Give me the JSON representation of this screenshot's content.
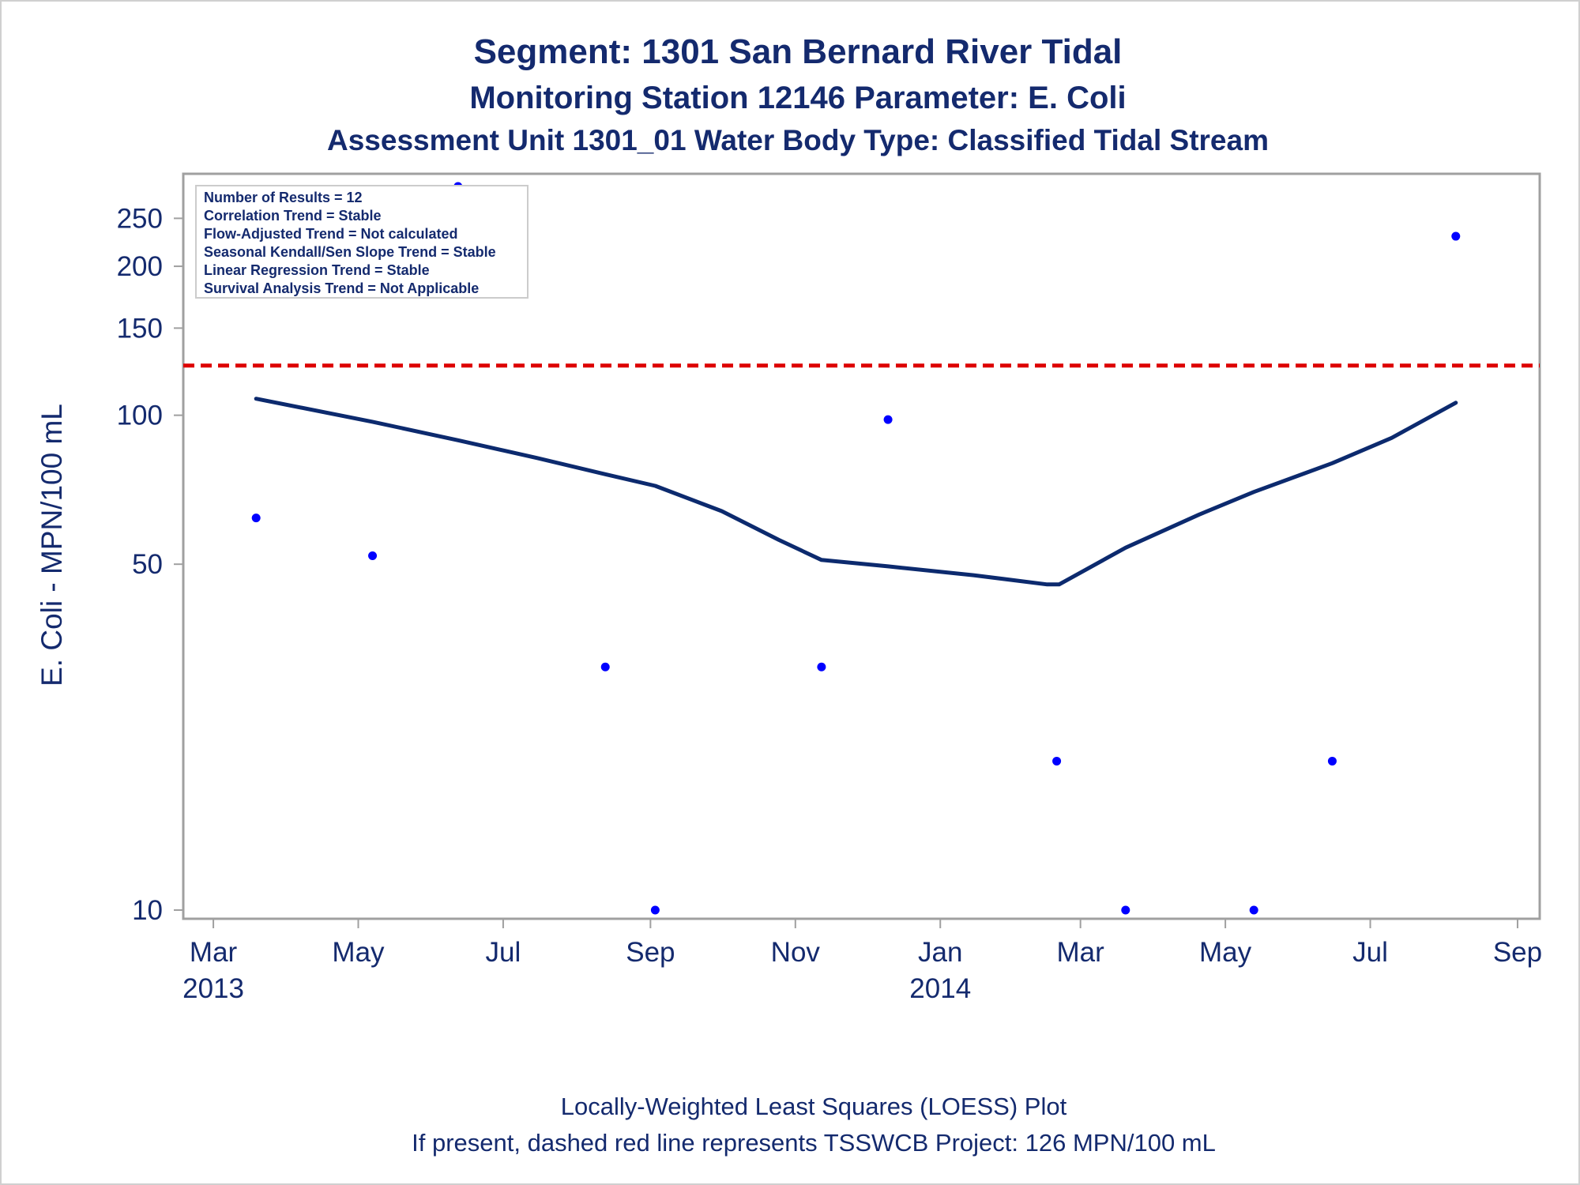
{
  "titles": [
    "Segment: 1301  San Bernard River Tidal",
    "Monitoring Station 12146 Parameter: E. Coli",
    "Assessment Unit 1301_01   Water Body Type: Classified Tidal Stream"
  ],
  "stats_box": [
    "Number of Results = 12",
    "Correlation Trend = Stable",
    "Flow-Adjusted Trend = Not calculated",
    "Seasonal Kendall/Sen Slope Trend = Stable",
    "Linear Regression Trend = Stable",
    "Survival Analysis Trend = Not Applicable"
  ],
  "footnotes": [
    "Locally-Weighted Least Squares (LOESS) Plot",
    "If present, dashed red line represents TSSWCB Project: 126 MPN/100 mL"
  ],
  "colors": {
    "text": "#142a6e",
    "points": "#0000ff",
    "loess": "#0c2a6e",
    "criterion": "#dd0000",
    "frame": "#a0a0a0"
  },
  "chart_data": {
    "type": "scatter",
    "ylabel": "E. Coli - MPN/100 mL",
    "xlabel": "",
    "y_scale": "log",
    "ylim": [
      10,
      290
    ],
    "xlim": [
      "2013-02-20",
      "2014-09-05"
    ],
    "y_ticks": [
      10,
      50,
      100,
      150,
      200,
      250
    ],
    "x_ticks": [
      {
        "date": "2013-03-01",
        "label": "Mar",
        "year": "2013"
      },
      {
        "date": "2013-05-01",
        "label": "May",
        "year": ""
      },
      {
        "date": "2013-07-01",
        "label": "Jul",
        "year": ""
      },
      {
        "date": "2013-09-01",
        "label": "Sep",
        "year": ""
      },
      {
        "date": "2013-11-01",
        "label": "Nov",
        "year": ""
      },
      {
        "date": "2014-01-01",
        "label": "Jan",
        "year": "2014"
      },
      {
        "date": "2014-03-01",
        "label": "Mar",
        "year": ""
      },
      {
        "date": "2014-05-01",
        "label": "May",
        "year": ""
      },
      {
        "date": "2014-07-01",
        "label": "Jul",
        "year": ""
      },
      {
        "date": "2014-09-01",
        "label": "Sep",
        "year": ""
      }
    ],
    "points": [
      {
        "x": "2013-03-19",
        "y": 62
      },
      {
        "x": "2013-05-07",
        "y": 52
      },
      {
        "x": "2013-06-12",
        "y": 290
      },
      {
        "x": "2013-08-13",
        "y": 31
      },
      {
        "x": "2013-09-03",
        "y": 10
      },
      {
        "x": "2013-11-12",
        "y": 31
      },
      {
        "x": "2013-12-10",
        "y": 98
      },
      {
        "x": "2014-02-19",
        "y": 20
      },
      {
        "x": "2014-03-20",
        "y": 10
      },
      {
        "x": "2014-05-13",
        "y": 10
      },
      {
        "x": "2014-06-15",
        "y": 20
      },
      {
        "x": "2014-08-06",
        "y": 230
      }
    ],
    "loess": [
      {
        "x": "2013-03-19",
        "y": 108
      },
      {
        "x": "2013-05-07",
        "y": 97
      },
      {
        "x": "2013-06-12",
        "y": 89
      },
      {
        "x": "2013-07-15",
        "y": 82
      },
      {
        "x": "2013-08-13",
        "y": 76
      },
      {
        "x": "2013-09-03",
        "y": 72
      },
      {
        "x": "2013-10-01",
        "y": 64
      },
      {
        "x": "2013-10-25",
        "y": 56
      },
      {
        "x": "2013-11-12",
        "y": 51
      },
      {
        "x": "2013-12-10",
        "y": 49.5
      },
      {
        "x": "2014-01-15",
        "y": 47.5
      },
      {
        "x": "2014-02-15",
        "y": 45.5
      },
      {
        "x": "2014-02-20",
        "y": 45.5
      },
      {
        "x": "2014-03-20",
        "y": 54
      },
      {
        "x": "2014-04-20",
        "y": 63
      },
      {
        "x": "2014-05-13",
        "y": 70
      },
      {
        "x": "2014-06-15",
        "y": 80
      },
      {
        "x": "2014-07-10",
        "y": 90
      },
      {
        "x": "2014-08-06",
        "y": 106
      }
    ],
    "reference_line": {
      "y": 126,
      "style": "dashed"
    }
  }
}
